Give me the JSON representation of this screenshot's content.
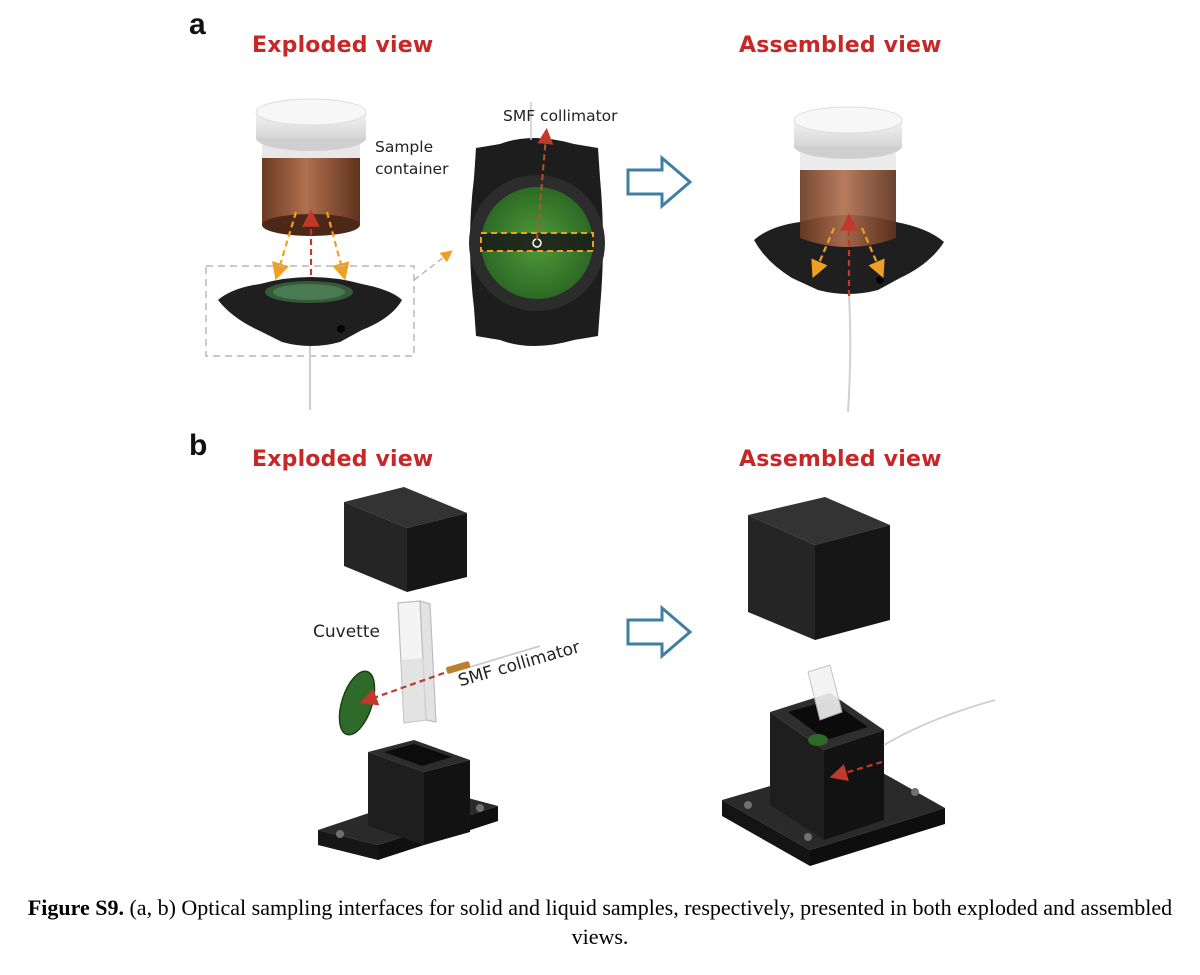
{
  "panel_a": {
    "letter": "a",
    "exploded_title": "Exploded view",
    "assembled_title": "Assembled view",
    "sample_container_label_line1": "Sample",
    "sample_container_label_line2": "container",
    "collimator_label": "SMF collimator"
  },
  "panel_b": {
    "letter": "b",
    "exploded_title": "Exploded view",
    "assembled_title": "Assembled view",
    "cuvette_label": "Cuvette",
    "collimator_label": "SMF collimator"
  },
  "caption": {
    "figure_label": "Figure S9.",
    "text": " (a, b) Optical sampling interfaces for solid and liquid samples, respectively, presented in both exploded and assembled views."
  },
  "colors": {
    "title_red": "#c62828",
    "arrow_blue": "#3f7fa6",
    "beam_orange": "#f0a020",
    "beam_red": "#c0392b",
    "housing_black": "#1e1e1e",
    "filter_green": "#2e7d32"
  }
}
